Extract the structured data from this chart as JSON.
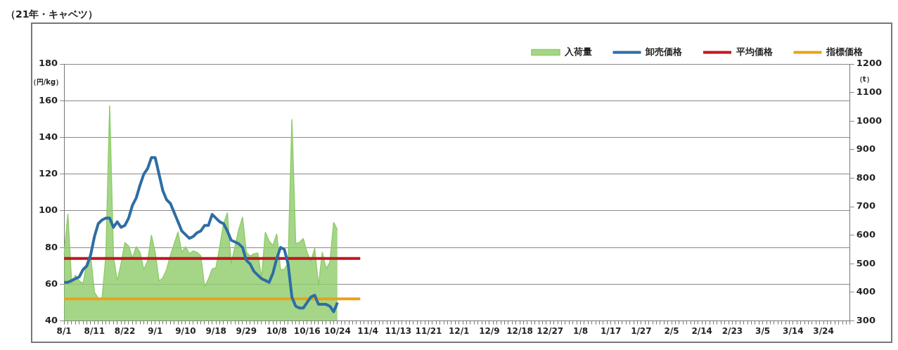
{
  "chart_data": {
    "type": "line",
    "title": "（21年・キャベツ）",
    "ylabel": "（円/kg）",
    "y2label": "（t）",
    "categories": [
      "8/1",
      null,
      null,
      null,
      null,
      null,
      null,
      null,
      "8/11",
      null,
      null,
      null,
      null,
      null,
      null,
      null,
      "8/22",
      null,
      null,
      null,
      null,
      null,
      null,
      null,
      "9/1",
      null,
      null,
      null,
      null,
      null,
      null,
      null,
      "9/10",
      null,
      null,
      null,
      null,
      null,
      null,
      null,
      "9/18",
      null,
      null,
      null,
      null,
      null,
      null,
      null,
      "9/29",
      null,
      null,
      null,
      null,
      null,
      null,
      null,
      "10/8",
      null,
      null,
      null,
      null,
      null,
      null,
      null,
      "10/16",
      null,
      null,
      null,
      null,
      null,
      null,
      null,
      "10/24",
      null,
      null,
      null,
      null,
      null,
      null,
      null,
      "11/4",
      null,
      null,
      null,
      null,
      null,
      null,
      null,
      "11/13",
      null,
      null,
      null,
      null,
      null,
      null,
      null,
      "11/21",
      null,
      null,
      null,
      null,
      null,
      null,
      null,
      "12/1",
      null,
      null,
      null,
      null,
      null,
      null,
      null,
      "12/9",
      null,
      null,
      null,
      null,
      null,
      null,
      null,
      "12/18",
      null,
      null,
      null,
      null,
      null,
      null,
      null,
      "12/27",
      null,
      null,
      null,
      null,
      null,
      null,
      null,
      "1/8",
      null,
      null,
      null,
      null,
      null,
      null,
      null,
      "1/17",
      null,
      null,
      null,
      null,
      null,
      null,
      null,
      "1/27",
      null,
      null,
      null,
      null,
      null,
      null,
      null,
      "2/5",
      null,
      null,
      null,
      null,
      null,
      null,
      null,
      "2/14",
      null,
      null,
      null,
      null,
      null,
      null,
      null,
      "2/23",
      null,
      null,
      null,
      null,
      null,
      null,
      null,
      "3/5",
      null,
      null,
      null,
      null,
      null,
      null,
      null,
      "3/14",
      null,
      null,
      null,
      null,
      null,
      null,
      null,
      "3/24",
      null,
      null,
      null,
      null,
      null,
      null,
      null
    ],
    "series": [
      {
        "name": "入荷量",
        "type": "area",
        "axis": "y2",
        "color": "#8fcc6a",
        "values": [
          534,
          674,
          430,
          460,
          440,
          431,
          505,
          526,
          400,
          379,
          379,
          526,
          1053,
          526,
          440,
          500,
          574,
          563,
          520,
          560,
          540,
          479,
          510,
          600,
          540,
          440,
          450,
          480,
          530,
          570,
          611,
          540,
          560,
          535,
          545,
          540,
          528,
          420,
          446,
          482,
          486,
          560,
          640,
          678,
          498,
          560,
          620,
          663,
          540,
          527,
          535,
          538,
          450,
          610,
          580,
          564,
          604,
          480,
          480,
          505,
          1005,
          571,
          575,
          588,
          540,
          509,
          553,
          424,
          540,
          483,
          505,
          645,
          619,
          null,
          null,
          null,
          null,
          null,
          null,
          null,
          null,
          null,
          null,
          null,
          null,
          null,
          null,
          null,
          null,
          null,
          null,
          null,
          null,
          null,
          null,
          null,
          null,
          null,
          null,
          null,
          null,
          null,
          null,
          null,
          null,
          null,
          null,
          null,
          null,
          null,
          null,
          null,
          null,
          null,
          null,
          null,
          null,
          null,
          null,
          null,
          null,
          null,
          null,
          null,
          null,
          null,
          null,
          null,
          null,
          null,
          null,
          null,
          null,
          null,
          null,
          null,
          null,
          null,
          null,
          null,
          null,
          null,
          null,
          null,
          null,
          null,
          null,
          null,
          null,
          null,
          null,
          null,
          null,
          null,
          null,
          null,
          null,
          null,
          null,
          null,
          null,
          null,
          null,
          null,
          null,
          null,
          null,
          null,
          null,
          null,
          null,
          null,
          null,
          null,
          null,
          null,
          null,
          null,
          null,
          null,
          null,
          null,
          null,
          null,
          null,
          null,
          null,
          null,
          null,
          null,
          null,
          null,
          null,
          null,
          null,
          null,
          null,
          null,
          null,
          null,
          null,
          null,
          null,
          null,
          null,
          null,
          null,
          null
        ]
      },
      {
        "name": "卸売価格",
        "type": "line",
        "color": "#2e6da4",
        "values": [
          61,
          61,
          62,
          63,
          64,
          68,
          70,
          76,
          86,
          93,
          95,
          96,
          96,
          91,
          94,
          91,
          92,
          96,
          103,
          107,
          114,
          120,
          123,
          129,
          129,
          120,
          111,
          106,
          104,
          99,
          94,
          89,
          87,
          85,
          86,
          88,
          89,
          92,
          92,
          98,
          96,
          94,
          93,
          89,
          84,
          83,
          82,
          80,
          73,
          71,
          67,
          65,
          63,
          62,
          61,
          66,
          74,
          80,
          79,
          71,
          53,
          48,
          47,
          47,
          50,
          53,
          54,
          49,
          49,
          49,
          48,
          45,
          50,
          null,
          null,
          null,
          null,
          null,
          null,
          null,
          null,
          null,
          null,
          null,
          null,
          null,
          null,
          null,
          null,
          null,
          null,
          null,
          null,
          null,
          null,
          null,
          null,
          null,
          null,
          null,
          null,
          null,
          null,
          null,
          null,
          null,
          null,
          null,
          null,
          null,
          null,
          null,
          null,
          null,
          null,
          null,
          null,
          null,
          null,
          null,
          null,
          null,
          null,
          null,
          null,
          null,
          null,
          null,
          null,
          null,
          null,
          null,
          null,
          null,
          null,
          null,
          null,
          null,
          null,
          null,
          null,
          null,
          null,
          null,
          null,
          null,
          null,
          null,
          null,
          null,
          null,
          null,
          null,
          null,
          null,
          null,
          null,
          null,
          null,
          null,
          null,
          null,
          null,
          null,
          null,
          null,
          null,
          null,
          null,
          null,
          null,
          null,
          null,
          null,
          null,
          null,
          null,
          null,
          null,
          null,
          null,
          null,
          null,
          null,
          null,
          null,
          null,
          null,
          null,
          null,
          null,
          null,
          null,
          null,
          null,
          null,
          null,
          null,
          null,
          null,
          null,
          null,
          null,
          null,
          null,
          null,
          null,
          null
        ]
      },
      {
        "name": "平均価格",
        "type": "line",
        "color": "#c0161f",
        "values": [
          74,
          74,
          74,
          74,
          74,
          74,
          74,
          74,
          74,
          74,
          74,
          74,
          74,
          74,
          74,
          74,
          74,
          74,
          74,
          74,
          74,
          74,
          74,
          74,
          74,
          74,
          74,
          74,
          74,
          74,
          74,
          74,
          74,
          74,
          74,
          74,
          74,
          74,
          74,
          74,
          74,
          74,
          74,
          74,
          74,
          74,
          74,
          74,
          74,
          74,
          74,
          74,
          74,
          74,
          74,
          74,
          74,
          74,
          74,
          74,
          74,
          74,
          74,
          74,
          74,
          74,
          74,
          74,
          74,
          74,
          74,
          74,
          74,
          74,
          74,
          74,
          74,
          74,
          74,
          null,
          null,
          null,
          null,
          null,
          null,
          null,
          null,
          null,
          null,
          null,
          null,
          null,
          null,
          null,
          null,
          null,
          null,
          null,
          null,
          null,
          null,
          null,
          null,
          null,
          null,
          null,
          null,
          null,
          null,
          null,
          null,
          null,
          null,
          null,
          null,
          null,
          null,
          null,
          null,
          null,
          null,
          null,
          null,
          null,
          null,
          null,
          null,
          null,
          null,
          null,
          null,
          null,
          null,
          null,
          null,
          null,
          null,
          null,
          null,
          null,
          null,
          null,
          null,
          null,
          null,
          null,
          null,
          null,
          null,
          null,
          null,
          null,
          null,
          null,
          null,
          null,
          null,
          null,
          null,
          null,
          null,
          null,
          null,
          null,
          null,
          null,
          null,
          null,
          null,
          null,
          null,
          null,
          null,
          null,
          null,
          null,
          null,
          null,
          null,
          null,
          null,
          null,
          null,
          null,
          null,
          null,
          null,
          null,
          null,
          null,
          null,
          null,
          null,
          null,
          null,
          null,
          null,
          null,
          null,
          null,
          null,
          null,
          null,
          null,
          null,
          null,
          null,
          null
        ]
      },
      {
        "name": "指標価格",
        "type": "line",
        "color": "#e8a317",
        "values": [
          52,
          52,
          52,
          52,
          52,
          52,
          52,
          52,
          52,
          52,
          52,
          52,
          52,
          52,
          52,
          52,
          52,
          52,
          52,
          52,
          52,
          52,
          52,
          52,
          52,
          52,
          52,
          52,
          52,
          52,
          52,
          52,
          52,
          52,
          52,
          52,
          52,
          52,
          52,
          52,
          52,
          52,
          52,
          52,
          52,
          52,
          52,
          52,
          52,
          52,
          52,
          52,
          52,
          52,
          52,
          52,
          52,
          52,
          52,
          52,
          52,
          52,
          52,
          52,
          52,
          52,
          52,
          52,
          52,
          52,
          52,
          52,
          52,
          52,
          52,
          52,
          52,
          52,
          52,
          null,
          null,
          null,
          null,
          null,
          null,
          null,
          null,
          null,
          null,
          null,
          null,
          null,
          null,
          null,
          null,
          null,
          null,
          null,
          null,
          null,
          null,
          null,
          null,
          null,
          null,
          null,
          null,
          null,
          null,
          null,
          null,
          null,
          null,
          null,
          null,
          null,
          null,
          null,
          null,
          null,
          null,
          null,
          null,
          null,
          null,
          null,
          null,
          null,
          null,
          null,
          null,
          null,
          null,
          null,
          null,
          null,
          null,
          null,
          null,
          null,
          null,
          null,
          null,
          null,
          null,
          null,
          null,
          null,
          null,
          null,
          null,
          null,
          null,
          null,
          null,
          null,
          null,
          null,
          null,
          null,
          null,
          null,
          null,
          null,
          null,
          null,
          null,
          null,
          null,
          null,
          null,
          null,
          null,
          null,
          null,
          null,
          null,
          null,
          null,
          null,
          null,
          null,
          null,
          null,
          null,
          null,
          null,
          null,
          null,
          null,
          null,
          null,
          null,
          null,
          null,
          null,
          null,
          null,
          null,
          null,
          null,
          null,
          null,
          null,
          null,
          null,
          null,
          null
        ]
      }
    ],
    "ylim": [
      40,
      180
    ],
    "yticks": [
      40,
      60,
      80,
      100,
      120,
      140,
      160,
      180
    ],
    "y2lim": [
      300,
      1200
    ],
    "y2ticks": [
      300,
      400,
      500,
      600,
      700,
      800,
      900,
      1000,
      1100,
      1200
    ],
    "grid": "y",
    "legend": "top right"
  }
}
